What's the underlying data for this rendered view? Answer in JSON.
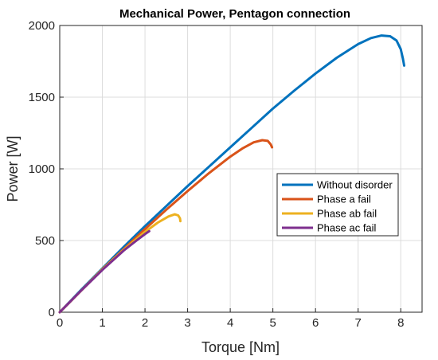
{
  "chart_data": {
    "type": "line",
    "title": "Mechanical Power, Pentagon connection",
    "xlabel": "Torque [Nm]",
    "ylabel": "Power [W]",
    "xlim": [
      0,
      8.5
    ],
    "ylim": [
      0,
      2000
    ],
    "xticks": [
      0,
      1,
      2,
      3,
      4,
      5,
      6,
      7,
      8
    ],
    "yticks": [
      0,
      500,
      1000,
      1500,
      2000
    ],
    "grid": true,
    "legend_position": "center-right",
    "series": [
      {
        "name": "Without disorder",
        "color": "#0072BD",
        "x": [
          0,
          0.5,
          1.0,
          1.5,
          2.0,
          2.5,
          3.0,
          3.5,
          4.0,
          4.5,
          5.0,
          5.5,
          6.0,
          6.5,
          7.0,
          7.3,
          7.55,
          7.75,
          7.9,
          8.0,
          8.05,
          8.08
        ],
        "y": [
          0,
          155,
          305,
          455,
          600,
          740,
          880,
          1015,
          1150,
          1285,
          1420,
          1545,
          1665,
          1775,
          1870,
          1912,
          1930,
          1925,
          1895,
          1835,
          1770,
          1720
        ]
      },
      {
        "name": "Phase a fail",
        "color": "#D95319",
        "x": [
          0,
          0.5,
          1.0,
          1.5,
          2.0,
          2.5,
          3.0,
          3.5,
          4.0,
          4.3,
          4.55,
          4.75,
          4.88,
          4.95,
          4.98
        ],
        "y": [
          0,
          150,
          300,
          440,
          580,
          715,
          845,
          970,
          1085,
          1145,
          1185,
          1200,
          1195,
          1170,
          1150
        ]
      },
      {
        "name": "Phase ab fail",
        "color": "#EDB120",
        "x": [
          0,
          0.5,
          1.0,
          1.5,
          2.0,
          2.3,
          2.55,
          2.7,
          2.78,
          2.82,
          2.83
        ],
        "y": [
          0,
          150,
          300,
          435,
          560,
          625,
          668,
          683,
          675,
          655,
          635
        ]
      },
      {
        "name": "Phase ac fail",
        "color": "#7E2F8E",
        "x": [
          0,
          0.5,
          1.0,
          1.5,
          1.8,
          2.0,
          2.1
        ],
        "y": [
          0,
          150,
          295,
          430,
          500,
          545,
          565
        ]
      }
    ]
  }
}
